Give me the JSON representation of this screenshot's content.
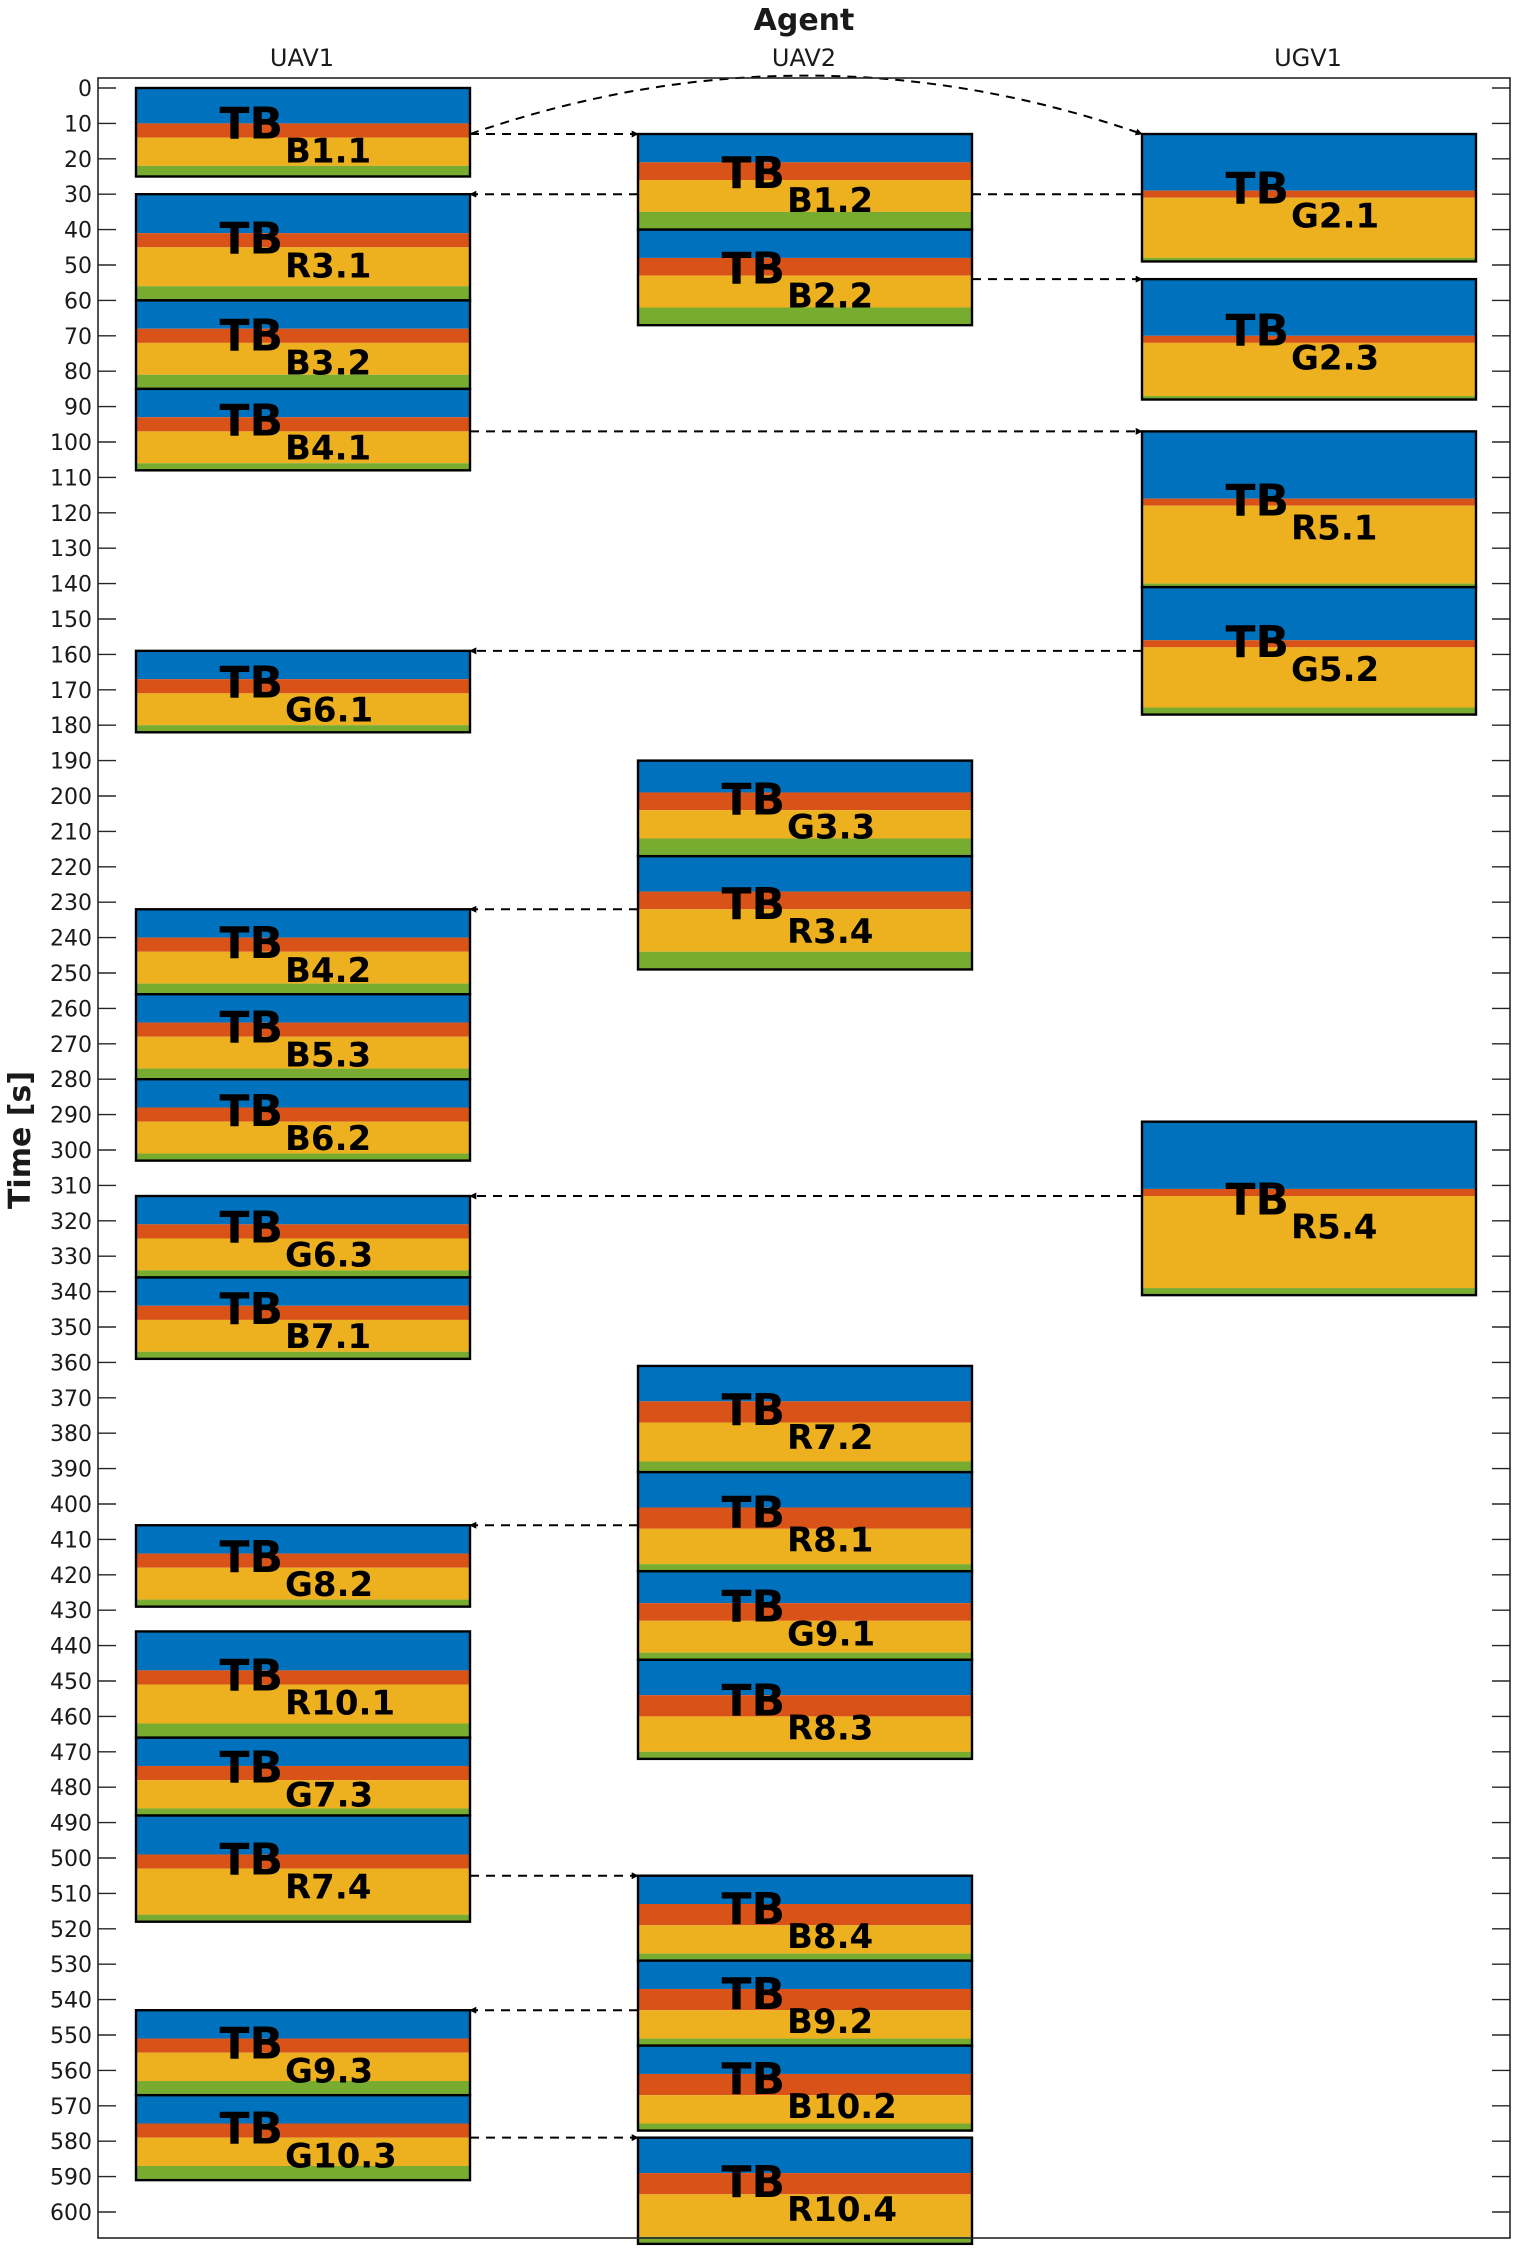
{
  "chart_data": {
    "type": "gantt",
    "title": "Agent",
    "ylabel": "Time [s]",
    "ylim": [
      0,
      605
    ],
    "y_ticks": [
      0,
      10,
      20,
      30,
      40,
      50,
      60,
      70,
      80,
      90,
      100,
      110,
      120,
      130,
      140,
      150,
      160,
      170,
      180,
      190,
      200,
      210,
      220,
      230,
      240,
      250,
      260,
      270,
      280,
      290,
      300,
      310,
      320,
      330,
      340,
      350,
      360,
      370,
      380,
      390,
      400,
      410,
      420,
      430,
      440,
      450,
      460,
      470,
      480,
      490,
      500,
      510,
      520,
      530,
      540,
      550,
      560,
      570,
      580,
      590,
      600
    ],
    "agents": [
      "UAV1",
      "UAV2",
      "UGV1"
    ],
    "colors": {
      "blue": "#0072BD",
      "red": "#D95319",
      "yellow": "#EDB120",
      "green": "#77AC30"
    },
    "blocks": [
      {
        "agent": 0,
        "label": "TB",
        "sub": "B1.1",
        "start": 0,
        "end": 25,
        "segments": [
          10,
          4,
          8,
          3
        ]
      },
      {
        "agent": 0,
        "label": "TB",
        "sub": "R3.1",
        "start": 30,
        "end": 60,
        "segments": [
          11,
          4,
          11,
          4
        ]
      },
      {
        "agent": 0,
        "label": "TB",
        "sub": "B3.2",
        "start": 60,
        "end": 85,
        "segments": [
          8,
          4,
          9,
          4
        ]
      },
      {
        "agent": 0,
        "label": "TB",
        "sub": "B4.1",
        "start": 85,
        "end": 108,
        "segments": [
          8,
          4,
          9,
          2
        ]
      },
      {
        "agent": 0,
        "label": "TB",
        "sub": "G6.1",
        "start": 159,
        "end": 182,
        "segments": [
          8,
          4,
          9,
          2
        ]
      },
      {
        "agent": 0,
        "label": "TB",
        "sub": "B4.2",
        "start": 232,
        "end": 256,
        "segments": [
          8,
          4,
          9,
          3
        ]
      },
      {
        "agent": 0,
        "label": "TB",
        "sub": "B5.3",
        "start": 256,
        "end": 280,
        "segments": [
          8,
          4,
          9,
          3
        ]
      },
      {
        "agent": 0,
        "label": "TB",
        "sub": "B6.2",
        "start": 280,
        "end": 303,
        "segments": [
          8,
          4,
          9,
          2
        ]
      },
      {
        "agent": 0,
        "label": "TB",
        "sub": "G6.3",
        "start": 313,
        "end": 336,
        "segments": [
          8,
          4,
          9,
          2
        ]
      },
      {
        "agent": 0,
        "label": "TB",
        "sub": "B7.1",
        "start": 336,
        "end": 359,
        "segments": [
          8,
          4,
          9,
          2
        ]
      },
      {
        "agent": 0,
        "label": "TB",
        "sub": "G8.2",
        "start": 406,
        "end": 429,
        "segments": [
          8,
          4,
          9,
          2
        ]
      },
      {
        "agent": 0,
        "label": "TB",
        "sub": "R10.1",
        "start": 436,
        "end": 466,
        "segments": [
          11,
          4,
          11,
          4
        ]
      },
      {
        "agent": 0,
        "label": "TB",
        "sub": "G7.3",
        "start": 466,
        "end": 488,
        "segments": [
          8,
          4,
          8,
          2
        ]
      },
      {
        "agent": 0,
        "label": "TB",
        "sub": "R7.4",
        "start": 488,
        "end": 518,
        "segments": [
          11,
          4,
          13,
          2
        ]
      },
      {
        "agent": 0,
        "label": "TB",
        "sub": "G9.3",
        "start": 543,
        "end": 567,
        "segments": [
          8,
          4,
          8,
          4
        ]
      },
      {
        "agent": 0,
        "label": "TB",
        "sub": "G10.3",
        "start": 567,
        "end": 591,
        "segments": [
          8,
          4,
          8,
          4
        ]
      },
      {
        "agent": 1,
        "label": "TB",
        "sub": "B1.2",
        "start": 13,
        "end": 40,
        "segments": [
          8,
          5,
          9,
          5
        ]
      },
      {
        "agent": 1,
        "label": "TB",
        "sub": "B2.2",
        "start": 40,
        "end": 67,
        "segments": [
          8,
          5,
          9,
          5
        ]
      },
      {
        "agent": 1,
        "label": "TB",
        "sub": "G3.3",
        "start": 190,
        "end": 217,
        "segments": [
          9,
          5,
          8,
          5
        ]
      },
      {
        "agent": 1,
        "label": "TB",
        "sub": "R3.4",
        "start": 217,
        "end": 249,
        "segments": [
          10,
          5,
          12,
          5
        ]
      },
      {
        "agent": 1,
        "label": "TB",
        "sub": "R7.2",
        "start": 361,
        "end": 391,
        "segments": [
          10,
          6,
          11,
          3
        ]
      },
      {
        "agent": 1,
        "label": "TB",
        "sub": "R8.1",
        "start": 391,
        "end": 419,
        "segments": [
          10,
          6,
          10,
          2
        ]
      },
      {
        "agent": 1,
        "label": "TB",
        "sub": "G9.1",
        "start": 419,
        "end": 444,
        "segments": [
          9,
          5,
          9,
          2
        ]
      },
      {
        "agent": 1,
        "label": "TB",
        "sub": "R8.3",
        "start": 444,
        "end": 472,
        "segments": [
          10,
          6,
          10,
          2
        ]
      },
      {
        "agent": 1,
        "label": "TB",
        "sub": "B8.4",
        "start": 505,
        "end": 529,
        "segments": [
          8,
          6,
          8,
          2
        ]
      },
      {
        "agent": 1,
        "label": "TB",
        "sub": "B9.2",
        "start": 529,
        "end": 553,
        "segments": [
          8,
          6,
          8,
          2
        ]
      },
      {
        "agent": 1,
        "label": "TB",
        "sub": "B10.2",
        "start": 553,
        "end": 577,
        "segments": [
          8,
          6,
          8,
          2
        ]
      },
      {
        "agent": 1,
        "label": "TB",
        "sub": "R10.4",
        "start": 579,
        "end": 609,
        "segments": [
          10,
          6,
          12,
          2
        ]
      },
      {
        "agent": 2,
        "label": "TB",
        "sub": "G2.1",
        "start": 13,
        "end": 49,
        "segments": [
          16,
          2,
          17,
          1
        ]
      },
      {
        "agent": 2,
        "label": "TB",
        "sub": "G2.3",
        "start": 54,
        "end": 88,
        "segments": [
          16,
          2,
          15,
          1
        ]
      },
      {
        "agent": 2,
        "label": "TB",
        "sub": "R5.1",
        "start": 97,
        "end": 141,
        "segments": [
          19,
          2,
          22,
          1
        ]
      },
      {
        "agent": 2,
        "label": "TB",
        "sub": "G5.2",
        "start": 141,
        "end": 177,
        "segments": [
          15,
          2,
          17,
          2
        ]
      },
      {
        "agent": 2,
        "label": "TB",
        "sub": "R5.4",
        "start": 292,
        "end": 341,
        "segments": [
          19,
          2,
          26,
          2
        ]
      }
    ],
    "arrows": [
      {
        "from_agent": 0,
        "to_agent": 1,
        "from_time": 13,
        "to_time": 13
      },
      {
        "from_agent": 0,
        "to_agent": 2,
        "from_time": 13,
        "to_time": 13,
        "curved": true
      },
      {
        "from_agent": 1,
        "to_agent": 0,
        "from_time": 30,
        "to_time": 30
      },
      {
        "from_agent": 1,
        "to_agent": 2,
        "from_time": 30,
        "to_time": 30,
        "no_head": true
      },
      {
        "from_agent": 1,
        "to_agent": 2,
        "from_time": 54,
        "to_time": 54
      },
      {
        "from_agent": 0,
        "to_agent": 2,
        "from_time": 97,
        "to_time": 97
      },
      {
        "from_agent": 2,
        "to_agent": 0,
        "from_time": 159,
        "to_time": 159
      },
      {
        "from_agent": 1,
        "to_agent": 0,
        "from_time": 232,
        "to_time": 232
      },
      {
        "from_agent": 2,
        "to_agent": 0,
        "from_time": 313,
        "to_time": 313
      },
      {
        "from_agent": 1,
        "to_agent": 0,
        "from_time": 406,
        "to_time": 406
      },
      {
        "from_agent": 0,
        "to_agent": 1,
        "from_time": 505,
        "to_time": 505
      },
      {
        "from_agent": 1,
        "to_agent": 0,
        "from_time": 543,
        "to_time": 543
      },
      {
        "from_agent": 0,
        "to_agent": 1,
        "from_time": 579,
        "to_time": 579
      }
    ]
  }
}
